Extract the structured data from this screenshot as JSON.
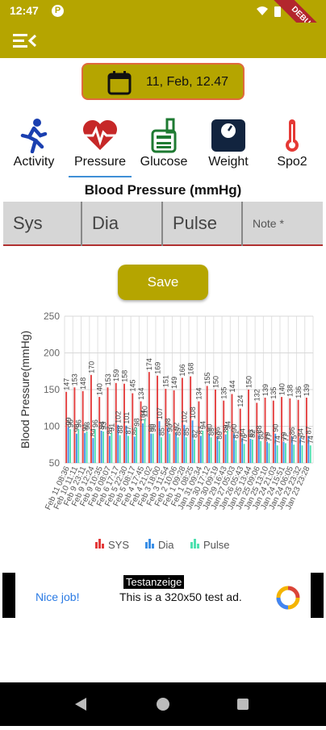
{
  "status": {
    "time": "12:47",
    "debug_label": "DEBUG"
  },
  "date_button": {
    "label": "11, Feb, 12.47"
  },
  "tabs": [
    {
      "label": "Activity",
      "icon": "running-person-icon"
    },
    {
      "label": "Pressure",
      "icon": "heart-pulse-icon"
    },
    {
      "label": "Glucose",
      "icon": "glucose-meter-icon"
    },
    {
      "label": "Weight",
      "icon": "scale-icon"
    },
    {
      "label": "Spo2",
      "icon": "thermometer-icon"
    }
  ],
  "section_title": "Blood Pressure (mmHg)",
  "fields": {
    "sys_placeholder": "Sys",
    "dia_placeholder": "Dia",
    "pulse_placeholder": "Pulse",
    "note_placeholder": "Note *"
  },
  "save_label": "Save",
  "colors": {
    "accent": "#b5a500",
    "sys": "#e33b3b",
    "dia": "#3b8fe6",
    "pulse": "#4fe0b0"
  },
  "chart_data": {
    "type": "bar",
    "ylabel": "Blood Pressure(mmHg)",
    "ylim": [
      50,
      250
    ],
    "yticks": [
      50,
      100,
      150,
      200,
      250
    ],
    "grid": true,
    "legend_position": "bottom",
    "categories": [
      "Feb 11 08:36",
      "Feb 10 11:11",
      "Feb 9 23:11",
      "Feb 9 12:24",
      "Feb 9 10:35",
      "Feb 8 08:07",
      "Feb 6 17:17",
      "Feb 5 22:30",
      "Feb 5 08:17",
      "Feb 4 17:45",
      "Feb 4 21:02",
      "Feb 3 18:00",
      "Feb 3 11:54",
      "Feb 2 10:06",
      "Feb 1 09:28",
      "Feb 1 08:25",
      "Jan 31 09:34",
      "Jan 30 17:12",
      "Jan 30 09:19",
      "Jan 29 16:43",
      "Jan 27 05:03",
      "Jan 26 05:43",
      "Jan 25 13:44",
      "Jan 25 09:06",
      "Jan 25 13:10",
      "Jan 24 21:03",
      "Jan 24 15:51",
      "Jan 24 06:05",
      "Jan 23 23:32",
      "Jan 23 23:28"
    ],
    "series": [
      {
        "name": "SYS",
        "values": [
          147,
          153,
          148,
          170,
          140,
          153,
          159,
          158,
          145,
          134,
          174,
          169,
          151,
          149,
          166,
          168,
          134,
          155,
          150,
          135,
          144,
          124,
          150,
          132,
          139,
          135,
          140,
          138,
          136,
          139
        ]
      },
      {
        "name": "Dia",
        "values": [
          99,
          90,
          91,
          84,
          94,
          87,
          102,
          101,
          86,
          104,
          90,
          107,
          98,
          92,
          102,
          108,
          87,
          90,
          86,
          89,
          90,
          84,
          83,
          88,
          79,
          90,
          79,
          86,
          84,
          87
        ]
      },
      {
        "name": "Pulse",
        "values": [
          96,
          96,
          93,
          96,
          93,
          91,
          88,
          87,
          98,
          110,
          90,
          85,
          90,
          85,
          85,
          82,
          94,
          85,
          80,
          94,
          81,
          76,
          82,
          80,
          77,
          74,
          77,
          75,
          74,
          74
        ]
      }
    ]
  },
  "ad": {
    "badge": "Testanzeige",
    "nice": "Nice job!",
    "text": "This is a 320x50 test ad."
  }
}
